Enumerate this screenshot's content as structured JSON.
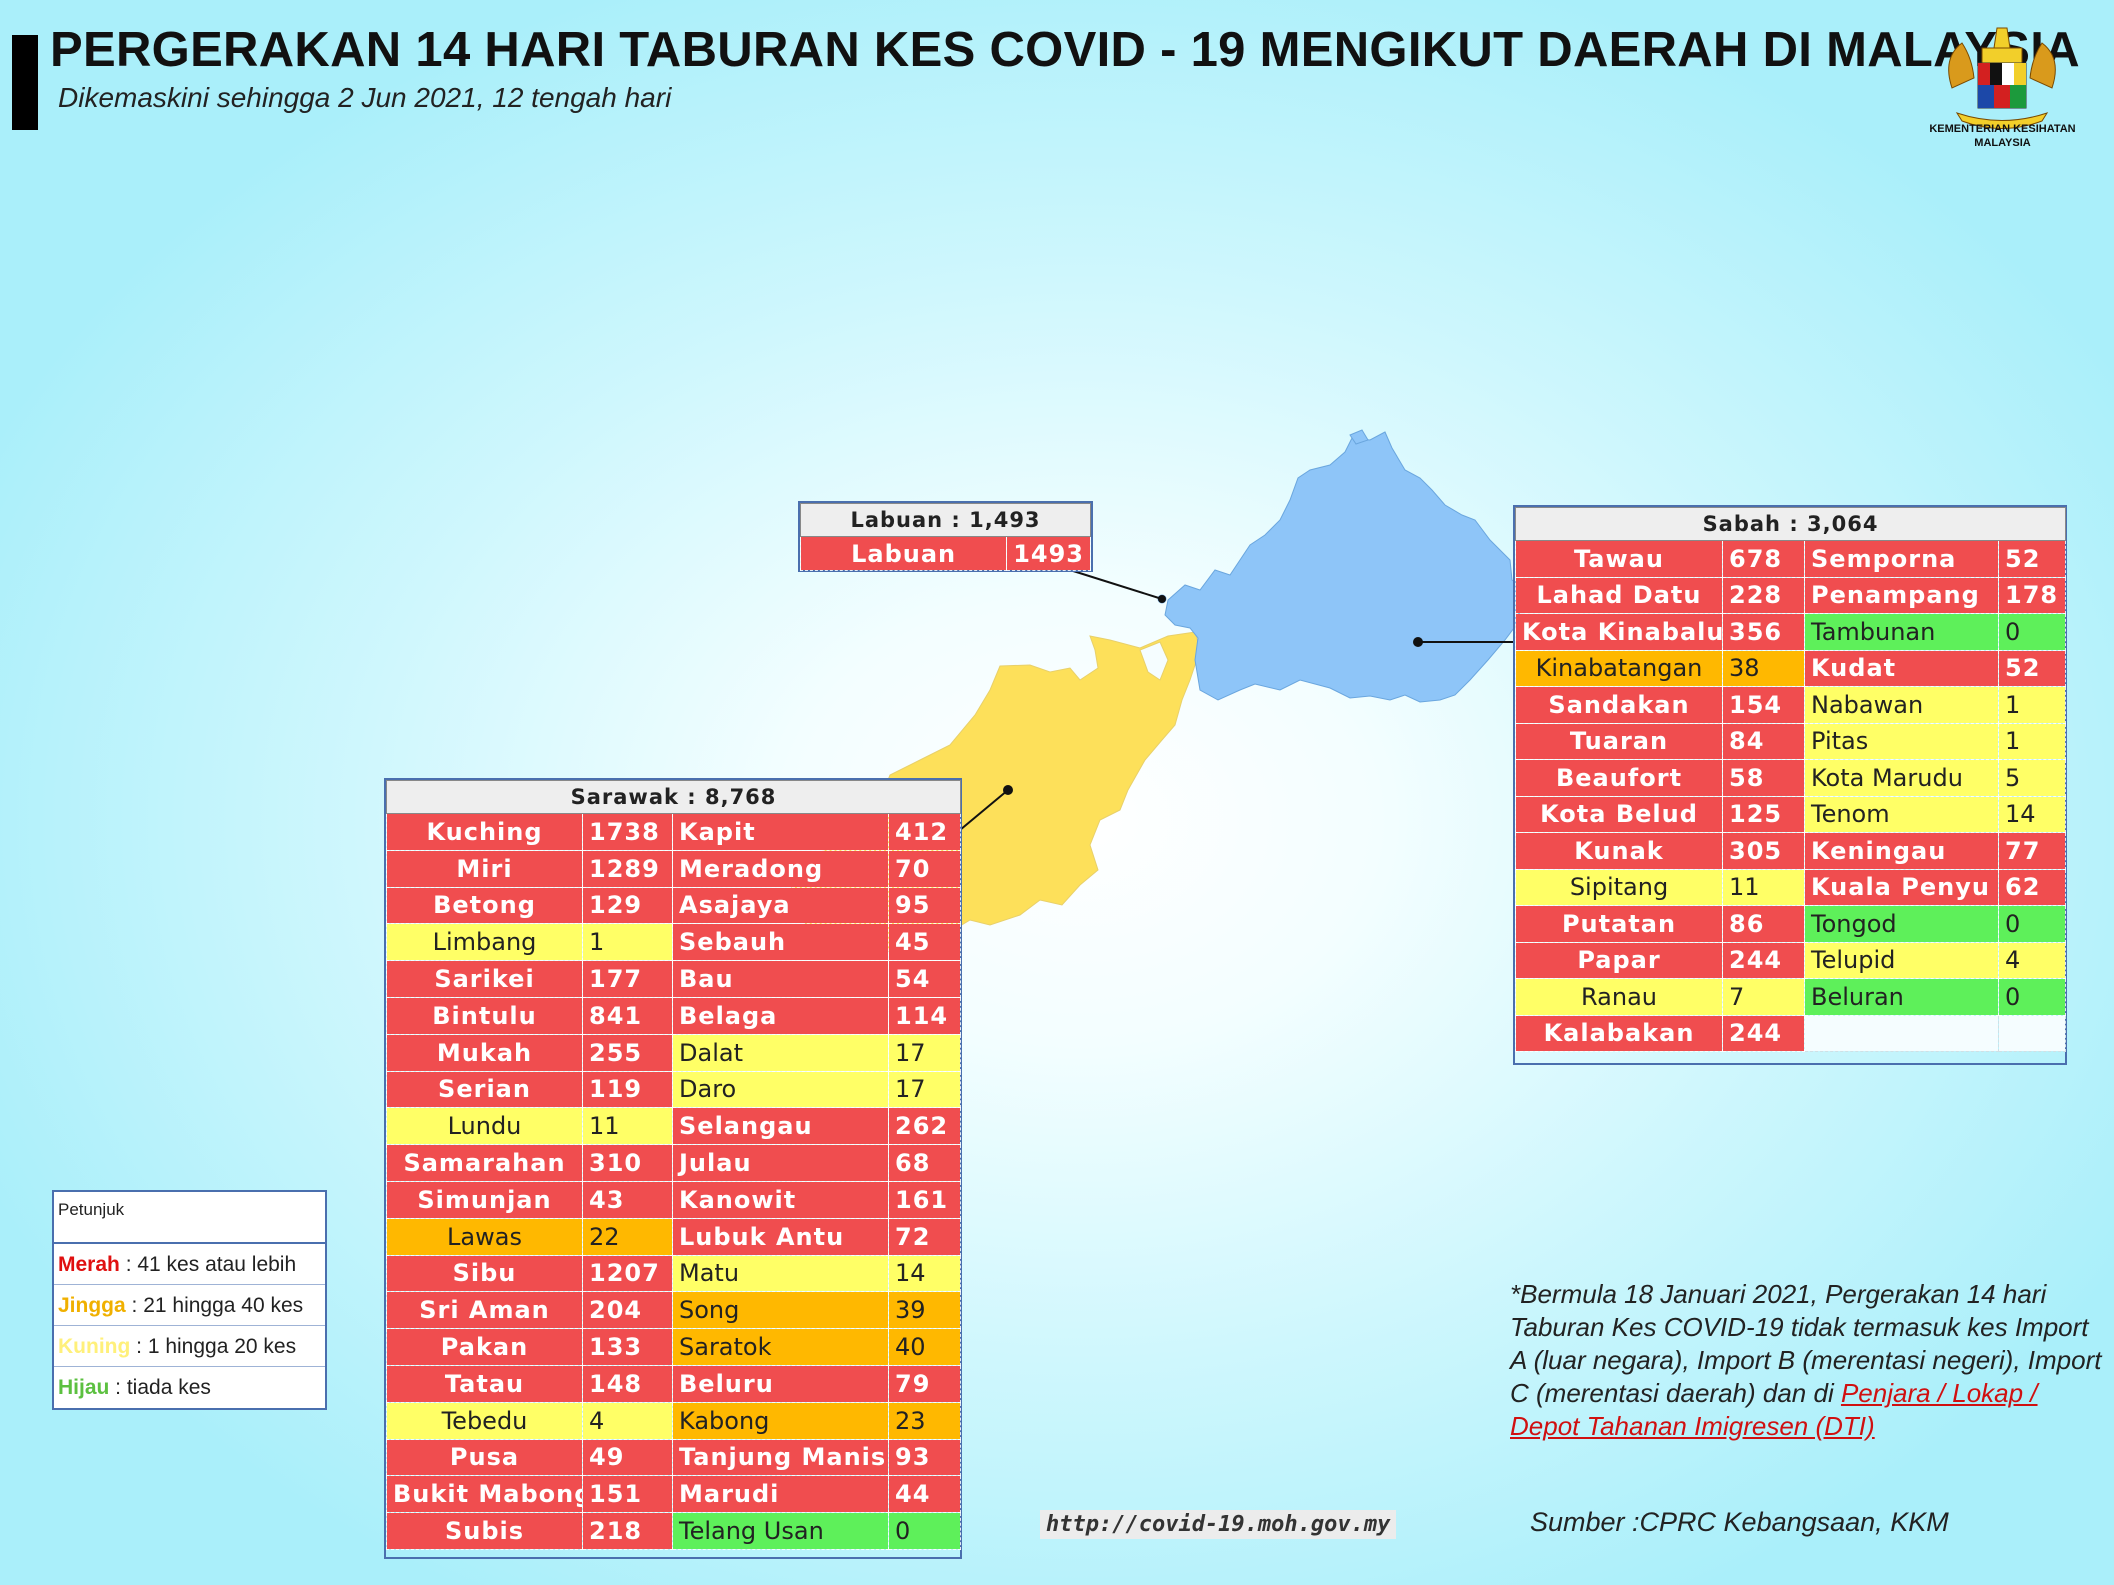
{
  "header": {
    "title": "PERGERAKAN 14 HARI TABURAN KES COVID - 19 MENGIKUT DAERAH DI MALAYSIA",
    "subtitle": "Dikemaskini sehingga 2 Jun 2021, 12 tengah hari",
    "logo_text_1": "KEMENTERIAN KESIHATAN",
    "logo_text_2": "MALAYSIA"
  },
  "colors": {
    "merah": "#f04d4f",
    "jingga": "#ffb800",
    "kuning": "#ffff66",
    "hijau": "#5ef05a",
    "sabah_fill": "#8ec5f8",
    "sarawak_fill": "#fde05a"
  },
  "labuan": {
    "header": "Labuan : 1,493",
    "rows": [
      {
        "name": "Labuan",
        "value": "1493",
        "level": "r"
      }
    ]
  },
  "sabah": {
    "header": "Sabah : 3,064",
    "rows": [
      [
        {
          "name": "Tawau",
          "value": "678",
          "level": "r"
        },
        {
          "name": "Semporna",
          "value": "52",
          "level": "r"
        }
      ],
      [
        {
          "name": "Lahad Datu",
          "value": "228",
          "level": "r"
        },
        {
          "name": "Penampang",
          "value": "178",
          "level": "r"
        }
      ],
      [
        {
          "name": "Kota Kinabalu",
          "value": "356",
          "level": "r"
        },
        {
          "name": "Tambunan",
          "value": "0",
          "level": "g"
        }
      ],
      [
        {
          "name": "Kinabatangan",
          "value": "38",
          "level": "o"
        },
        {
          "name": "Kudat",
          "value": "52",
          "level": "r"
        }
      ],
      [
        {
          "name": "Sandakan",
          "value": "154",
          "level": "r"
        },
        {
          "name": "Nabawan",
          "value": "1",
          "level": "y"
        }
      ],
      [
        {
          "name": "Tuaran",
          "value": "84",
          "level": "r"
        },
        {
          "name": "Pitas",
          "value": "1",
          "level": "y"
        }
      ],
      [
        {
          "name": "Beaufort",
          "value": "58",
          "level": "r"
        },
        {
          "name": "Kota Marudu",
          "value": "5",
          "level": "y"
        }
      ],
      [
        {
          "name": "Kota Belud",
          "value": "125",
          "level": "r"
        },
        {
          "name": "Tenom",
          "value": "14",
          "level": "y"
        }
      ],
      [
        {
          "name": "Kunak",
          "value": "305",
          "level": "r"
        },
        {
          "name": "Keningau",
          "value": "77",
          "level": "r"
        }
      ],
      [
        {
          "name": "Sipitang",
          "value": "11",
          "level": "y"
        },
        {
          "name": "Kuala Penyu",
          "value": "62",
          "level": "r"
        }
      ],
      [
        {
          "name": "Putatan",
          "value": "86",
          "level": "r"
        },
        {
          "name": "Tongod",
          "value": "0",
          "level": "g"
        }
      ],
      [
        {
          "name": "Papar",
          "value": "244",
          "level": "r"
        },
        {
          "name": "Telupid",
          "value": "4",
          "level": "y"
        }
      ],
      [
        {
          "name": "Ranau",
          "value": "7",
          "level": "y"
        },
        {
          "name": "Beluran",
          "value": "0",
          "level": "g"
        }
      ],
      [
        {
          "name": "Kalabakan",
          "value": "244",
          "level": "r"
        },
        {
          "name": "",
          "value": "",
          "level": "e"
        }
      ]
    ]
  },
  "sarawak": {
    "header": "Sarawak : 8,768",
    "rows": [
      [
        {
          "name": "Kuching",
          "value": "1738",
          "level": "r"
        },
        {
          "name": "Kapit",
          "value": "412",
          "level": "r"
        }
      ],
      [
        {
          "name": "Miri",
          "value": "1289",
          "level": "r"
        },
        {
          "name": "Meradong",
          "value": "70",
          "level": "r"
        }
      ],
      [
        {
          "name": "Betong",
          "value": "129",
          "level": "r"
        },
        {
          "name": "Asajaya",
          "value": "95",
          "level": "r"
        }
      ],
      [
        {
          "name": "Limbang",
          "value": "1",
          "level": "y"
        },
        {
          "name": "Sebauh",
          "value": "45",
          "level": "r"
        }
      ],
      [
        {
          "name": "Sarikei",
          "value": "177",
          "level": "r"
        },
        {
          "name": "Bau",
          "value": "54",
          "level": "r"
        }
      ],
      [
        {
          "name": "Bintulu",
          "value": "841",
          "level": "r"
        },
        {
          "name": "Belaga",
          "value": "114",
          "level": "r"
        }
      ],
      [
        {
          "name": "Mukah",
          "value": "255",
          "level": "r"
        },
        {
          "name": "Dalat",
          "value": "17",
          "level": "y"
        }
      ],
      [
        {
          "name": "Serian",
          "value": "119",
          "level": "r"
        },
        {
          "name": "Daro",
          "value": "17",
          "level": "y"
        }
      ],
      [
        {
          "name": "Lundu",
          "value": "11",
          "level": "y"
        },
        {
          "name": "Selangau",
          "value": "262",
          "level": "r"
        }
      ],
      [
        {
          "name": "Samarahan",
          "value": "310",
          "level": "r"
        },
        {
          "name": "Julau",
          "value": "68",
          "level": "r"
        }
      ],
      [
        {
          "name": "Simunjan",
          "value": "43",
          "level": "r"
        },
        {
          "name": "Kanowit",
          "value": "161",
          "level": "r"
        }
      ],
      [
        {
          "name": "Lawas",
          "value": "22",
          "level": "o"
        },
        {
          "name": "Lubuk Antu",
          "value": "72",
          "level": "r"
        }
      ],
      [
        {
          "name": "Sibu",
          "value": "1207",
          "level": "r"
        },
        {
          "name": "Matu",
          "value": "14",
          "level": "y"
        }
      ],
      [
        {
          "name": "Sri Aman",
          "value": "204",
          "level": "r"
        },
        {
          "name": "Song",
          "value": "39",
          "level": "o"
        }
      ],
      [
        {
          "name": "Pakan",
          "value": "133",
          "level": "r"
        },
        {
          "name": "Saratok",
          "value": "40",
          "level": "o"
        }
      ],
      [
        {
          "name": "Tatau",
          "value": "148",
          "level": "r"
        },
        {
          "name": "Beluru",
          "value": "79",
          "level": "r"
        }
      ],
      [
        {
          "name": "Tebedu",
          "value": "4",
          "level": "y"
        },
        {
          "name": "Kabong",
          "value": "23",
          "level": "o"
        }
      ],
      [
        {
          "name": "Pusa",
          "value": "49",
          "level": "r"
        },
        {
          "name": "Tanjung Manis",
          "value": "93",
          "level": "r"
        }
      ],
      [
        {
          "name": "Bukit Mabong",
          "value": "151",
          "level": "r"
        },
        {
          "name": "Marudi",
          "value": "44",
          "level": "r"
        }
      ],
      [
        {
          "name": "Subis",
          "value": "218",
          "level": "r"
        },
        {
          "name": "Telang Usan",
          "value": "0",
          "level": "g"
        }
      ]
    ]
  },
  "legend": {
    "title": "Petunjuk",
    "items": [
      {
        "key": "Merah",
        "text": " : 41 kes atau lebih",
        "color": "#e01010"
      },
      {
        "key": "Jingga",
        "text": " : 21 hingga 40 kes",
        "color": "#f0b000"
      },
      {
        "key": "Kuning",
        "text": " : 1 hingga 20 kes",
        "color": "#fff07a"
      },
      {
        "key": "Hijau",
        "text": " : tiada kes",
        "color": "#5cc040"
      }
    ]
  },
  "note": {
    "text": "*Bermula 18 Januari 2021, Pergerakan 14 hari Taburan Kes COVID-19 tidak termasuk kes Import A (luar negara), Import B (merentasi negeri), Import C (merentasi daerah) dan di ",
    "link": "Penjara / Lokap / Depot Tahanan Imigresen (DTI)"
  },
  "url": "http://covid-19.moh.gov.my",
  "source": "Sumber :CPRC Kebangsaan,  KKM"
}
